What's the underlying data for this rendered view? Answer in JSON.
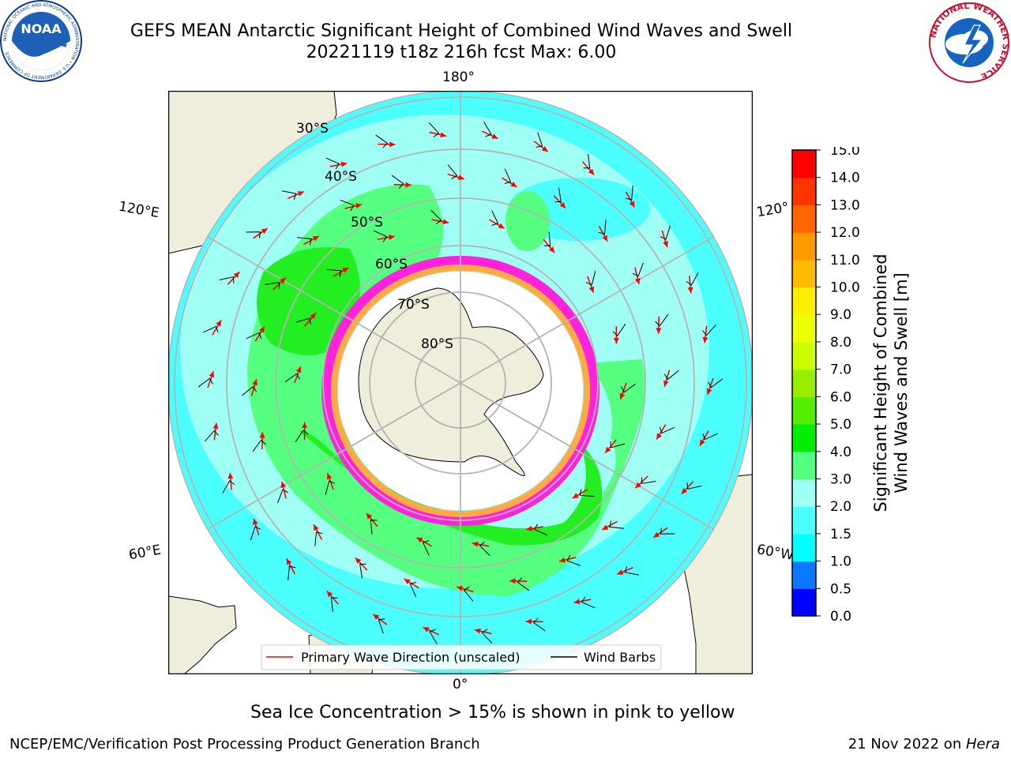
{
  "header": {
    "title_line1": "GEFS MEAN Antarctic Significant Height of Combined Wind Waves and Swell",
    "title_line2": "20221119 t18z 216h fcst   Max: 6.00"
  },
  "logos": {
    "noaa_text": "NOAA",
    "noaa_ring": "NATIONAL OCEANIC AND ATMOSPHERIC ADMINISTRATION • U.S. DEPARTMENT OF COMMERCE",
    "nws_ring": "NATIONAL WEATHER SERVICE"
  },
  "map": {
    "projection": "south-polar-stereographic",
    "longitude_labels": {
      "top": "180°",
      "bottom": "0°",
      "left_upper": "120°E",
      "left_lower": "60°E",
      "right_upper": "120°",
      "right_lower": "60°W"
    },
    "latitude_labels": [
      "30°S",
      "40°S",
      "50°S",
      "60°S",
      "70°S",
      "80°S"
    ],
    "legend": {
      "wave_direction": "Primary Wave Direction (unscaled)",
      "wind_barbs": "Wind Barbs"
    },
    "colors": {
      "land": "#efeddc",
      "ocean_1_5_2": "#4cffff",
      "ocean_2_3": "#a0fff5",
      "ocean_3_4": "#55ff80",
      "ocean_4_5": "#22ee22",
      "wave_arrow": "#ff0000",
      "ice_pink": "#ff22dd",
      "ice_orange": "#ffaa44"
    }
  },
  "colorbar": {
    "label_line1": "Significant Height of Combined",
    "label_line2": "Wind Waves and Swell [m]",
    "ticks": [
      "0.0",
      "0.5",
      "1.0",
      "1.5",
      "2.0",
      "3.0",
      "4.0",
      "5.0",
      "6.0",
      "7.0",
      "8.0",
      "9.0",
      "10.0",
      "11.0",
      "12.0",
      "13.0",
      "14.0",
      "15.0"
    ],
    "colors": [
      "#0000ff",
      "#0a78ff",
      "#00ffff",
      "#4cffff",
      "#a0fff5",
      "#55ff80",
      "#00ee00",
      "#55ee00",
      "#99ee00",
      "#ccff00",
      "#eeff00",
      "#ffee00",
      "#ffbb00",
      "#ff9900",
      "#ff6600",
      "#ff3300",
      "#ff0000"
    ]
  },
  "footer": {
    "note": "Sea Ice Concentration > 15% is shown in pink to yellow",
    "credit": "NCEP/EMC/Verification Post Processing Product Generation Branch",
    "date": "21 Nov 2022 on ",
    "machine": "Hera"
  }
}
